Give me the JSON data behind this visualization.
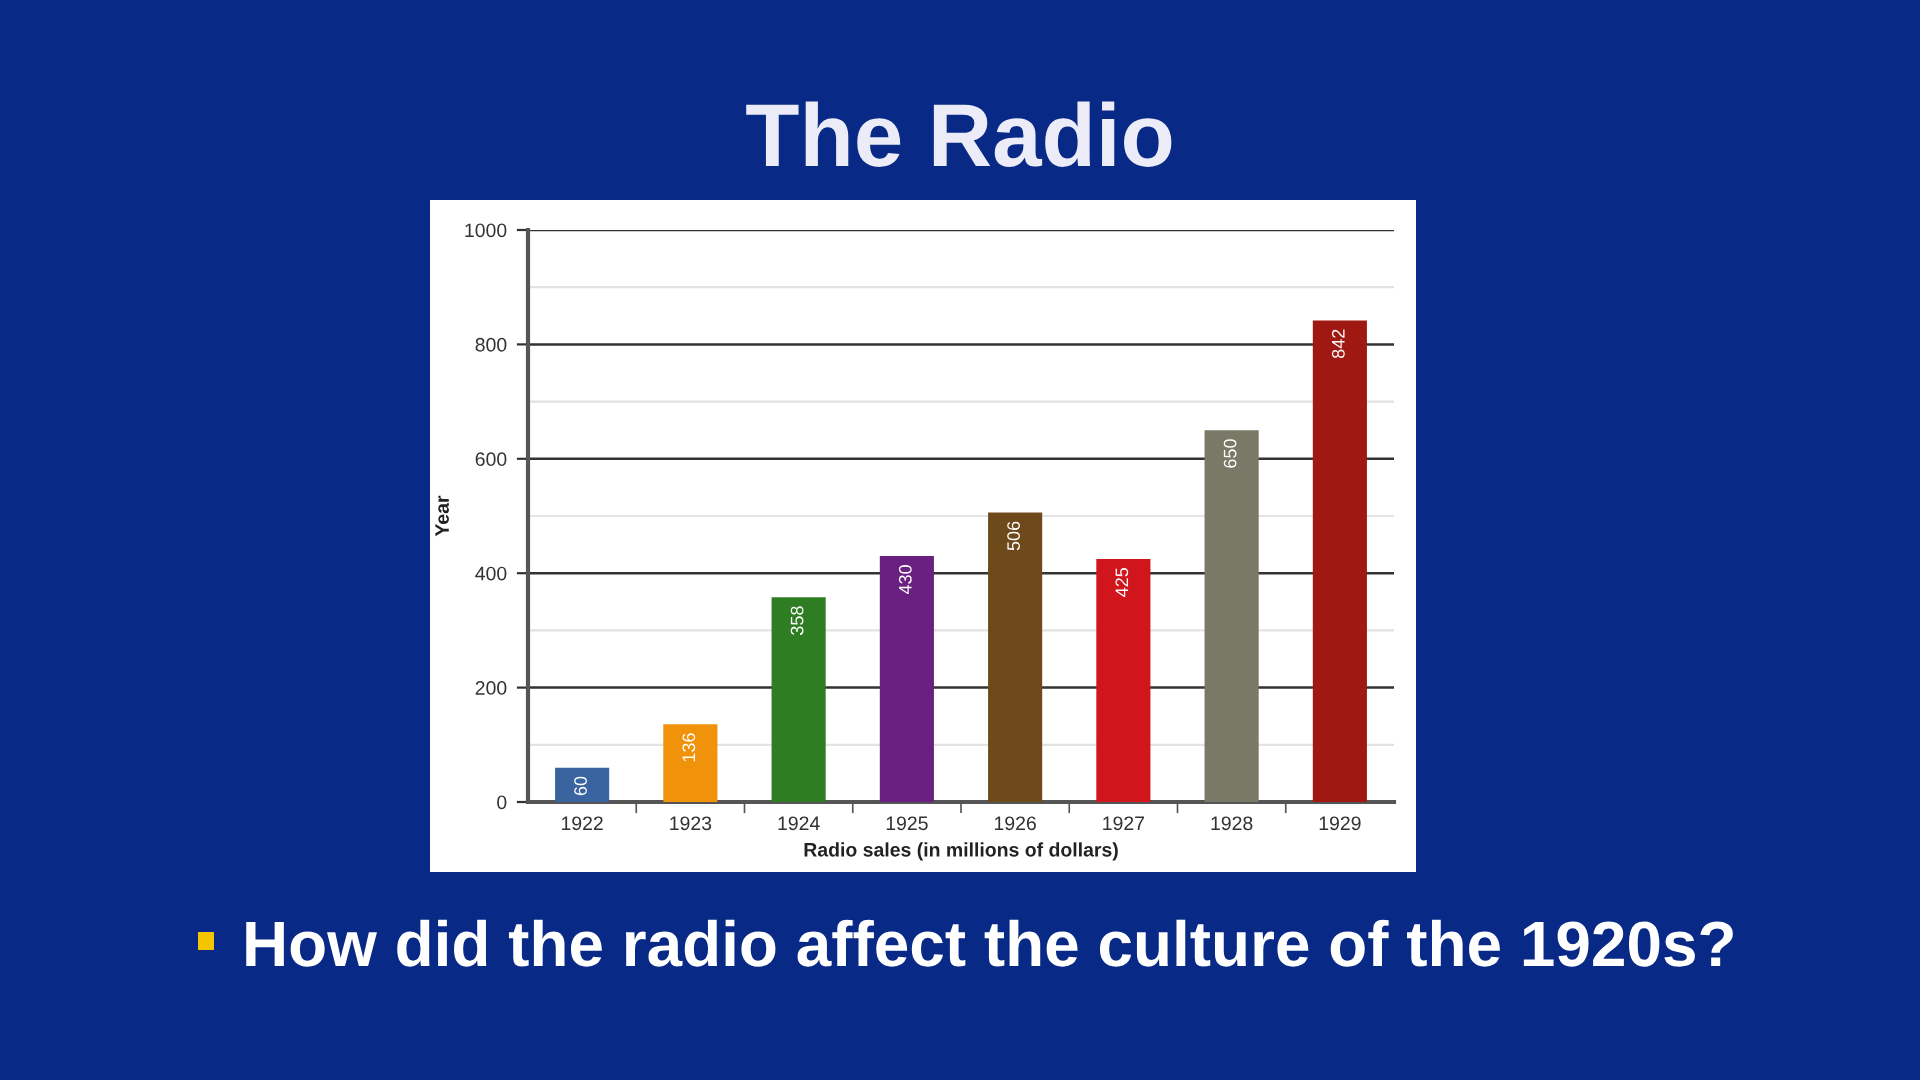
{
  "chart_data": {
    "type": "bar",
    "title": "The Radio",
    "xlabel": "Radio sales (in millions of dollars)",
    "ylabel": "Year",
    "categories": [
      "1922",
      "1923",
      "1924",
      "1925",
      "1926",
      "1927",
      "1928",
      "1929"
    ],
    "values": [
      60,
      136,
      358,
      430,
      506,
      425,
      650,
      842
    ],
    "colors": [
      "#3a64a0",
      "#f0920a",
      "#2e7d22",
      "#6a2080",
      "#6e4a1a",
      "#d0161c",
      "#7a7866",
      "#a01812"
    ],
    "ylim": [
      0,
      1000
    ],
    "yticks": [
      0,
      {
        "value": 100,
        "label": null
      },
      200,
      {
        "value": 300,
        "label": null
      },
      400,
      {
        "value": 500,
        "label": null
      },
      600,
      {
        "value": 700,
        "label": null
      },
      800,
      {
        "value": 900,
        "label": null
      },
      1000
    ],
    "grid": "y",
    "data_labels": true,
    "annotations": [
      "How did the radio affect the culture of the 1920s?"
    ]
  }
}
